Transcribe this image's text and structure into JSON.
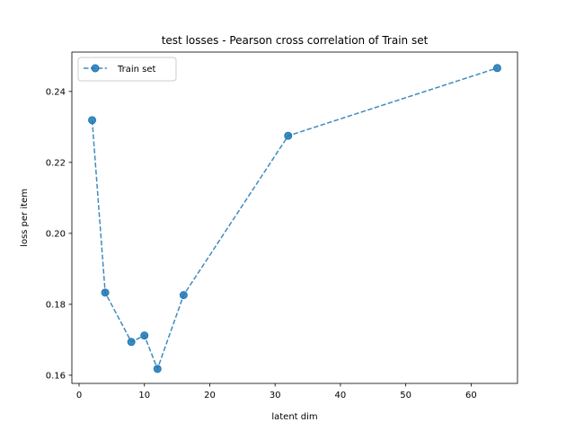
{
  "chart_data": {
    "type": "line",
    "title": "test losses - Pearson cross correlation of Train set",
    "xlabel": "latent dim",
    "ylabel": "loss per item",
    "xlim": [
      -1.1,
      67.1
    ],
    "ylim": [
      0.1577,
      0.2511
    ],
    "xticks": [
      0,
      10,
      20,
      30,
      40,
      50,
      60
    ],
    "yticks": [
      0.16,
      0.18,
      0.2,
      0.22,
      0.24
    ],
    "ytick_labels": [
      "0.16",
      "0.18",
      "0.20",
      "0.22",
      "0.24"
    ],
    "grid": false,
    "legend_position": "upper left",
    "series": [
      {
        "name": "Train set",
        "color": "#1f77b4",
        "linestyle": "dashed",
        "marker": "circle",
        "x": [
          2,
          4,
          8,
          10,
          12,
          16,
          32,
          64
        ],
        "y": [
          0.2319,
          0.1833,
          0.1694,
          0.1712,
          0.1618,
          0.1826,
          0.2275,
          0.2466
        ]
      }
    ]
  }
}
